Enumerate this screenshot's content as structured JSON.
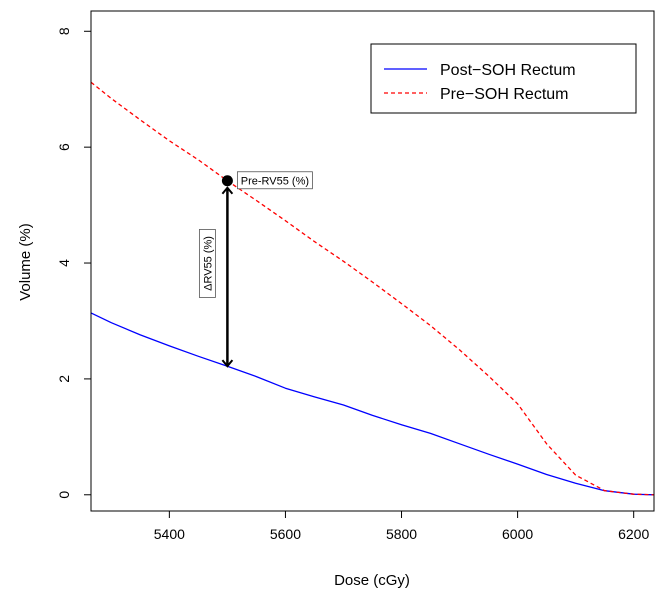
{
  "chart_data": {
    "type": "line",
    "xlabel": "Dose (cGy)",
    "ylabel": "Volume (%)",
    "xlim": [
      5265,
      6235
    ],
    "ylim": [
      -0.28,
      8.35
    ],
    "xticks": [
      5400,
      5600,
      5800,
      6000,
      6200
    ],
    "yticks": [
      0,
      2,
      4,
      6,
      8
    ],
    "grid": false,
    "legend_position": "top-right",
    "series": [
      {
        "name": "Post−SOH Rectum",
        "color": "#0000ff",
        "dash": "solid",
        "x": [
          5265,
          5300,
          5350,
          5400,
          5450,
          5500,
          5550,
          5600,
          5650,
          5700,
          5750,
          5800,
          5850,
          5900,
          5950,
          6000,
          6050,
          6100,
          6150,
          6200,
          6235
        ],
        "y": [
          3.14,
          2.97,
          2.76,
          2.57,
          2.39,
          2.22,
          2.04,
          1.84,
          1.69,
          1.55,
          1.37,
          1.21,
          1.06,
          0.88,
          0.7,
          0.53,
          0.35,
          0.2,
          0.07,
          0.01,
          0.0
        ]
      },
      {
        "name": "Pre−SOH Rectum",
        "color": "#ff0000",
        "dash": "dashed",
        "x": [
          5265,
          5300,
          5350,
          5400,
          5450,
          5500,
          5550,
          5600,
          5650,
          5700,
          5750,
          5800,
          5850,
          5900,
          5950,
          6000,
          6050,
          6100,
          6150,
          6200,
          6235
        ],
        "y": [
          7.12,
          6.84,
          6.47,
          6.11,
          5.78,
          5.42,
          5.08,
          4.73,
          4.37,
          4.03,
          3.67,
          3.3,
          2.92,
          2.5,
          2.05,
          1.57,
          0.88,
          0.34,
          0.07,
          0.01,
          0.0
        ]
      }
    ],
    "annotations": {
      "point": {
        "label": "Pre-RV55 (%)",
        "x": 5500,
        "y": 5.42
      },
      "arrow": {
        "label": "ΔRV55 (%)",
        "x": 5500,
        "y_from": 2.22,
        "y_to": 5.42
      }
    }
  }
}
